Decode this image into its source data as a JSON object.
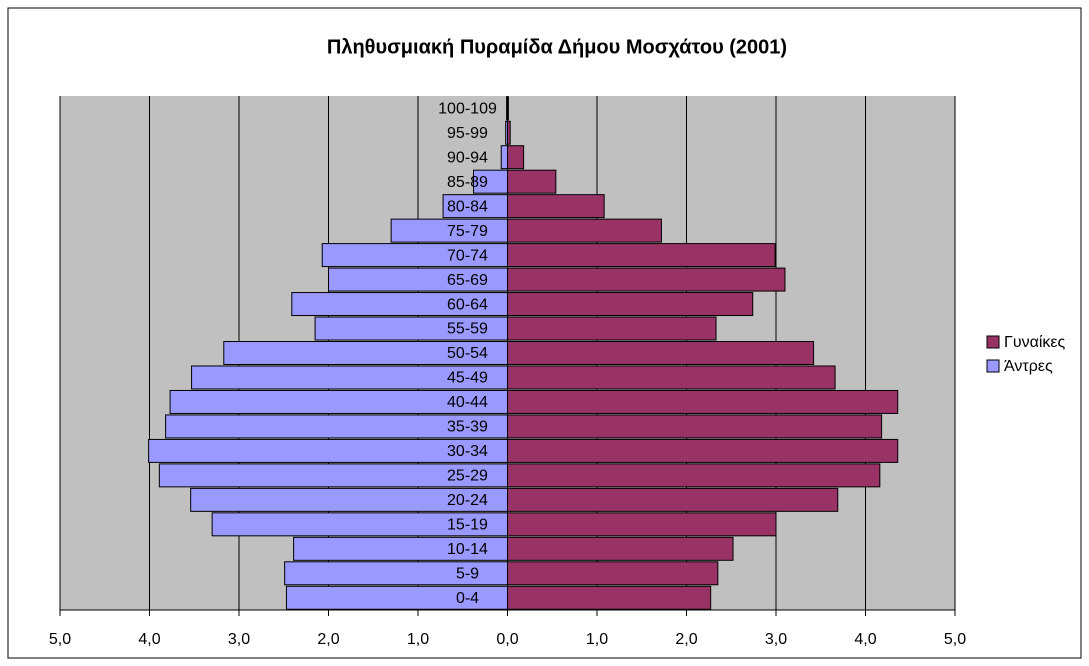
{
  "chart_data": {
    "type": "pyramid",
    "title": "Πληθυσμιακή Πυραμίδα Δήμου Μοσχάτου (2001)",
    "categories": [
      "0-4",
      "5-9",
      "10-14",
      "15-19",
      "20-24",
      "25-29",
      "30-34",
      "35-39",
      "40-44",
      "45-49",
      "50-54",
      "55-59",
      "60-64",
      "65-69",
      "70-74",
      "75-79",
      "80-84",
      "85-89",
      "90-94",
      "95-99",
      "100-109"
    ],
    "series": [
      {
        "name": "Άντρες",
        "color": "#9999ff",
        "values": [
          -2.47,
          -2.49,
          -2.39,
          -3.3,
          -3.54,
          -3.89,
          -4.01,
          -3.82,
          -3.77,
          -3.53,
          -3.17,
          -2.15,
          -2.41,
          -2.0,
          -2.07,
          -1.3,
          -0.72,
          -0.38,
          -0.07,
          -0.02,
          -0.01
        ]
      },
      {
        "name": "Γυναίκες",
        "color": "#993366",
        "values": [
          2.27,
          2.35,
          2.52,
          3.0,
          3.69,
          4.16,
          4.36,
          4.18,
          4.36,
          3.66,
          3.42,
          2.33,
          2.74,
          3.1,
          2.99,
          1.72,
          1.08,
          0.54,
          0.18,
          0.03,
          0.01
        ]
      }
    ],
    "xlim": [
      -5,
      5
    ],
    "xticks": [
      {
        "value": -5,
        "label": "5,0"
      },
      {
        "value": -4,
        "label": "4,0"
      },
      {
        "value": -3,
        "label": "3,0"
      },
      {
        "value": -2,
        "label": "2,0"
      },
      {
        "value": -1,
        "label": "1,0"
      },
      {
        "value": 0,
        "label": "0,0"
      },
      {
        "value": 1,
        "label": "1,0"
      },
      {
        "value": 2,
        "label": "2,0"
      },
      {
        "value": 3,
        "label": "3,0"
      },
      {
        "value": 4,
        "label": "4,0"
      },
      {
        "value": 5,
        "label": "5,0"
      }
    ],
    "grid": true,
    "plot_background": "#c0c0c0",
    "legend": "right"
  }
}
